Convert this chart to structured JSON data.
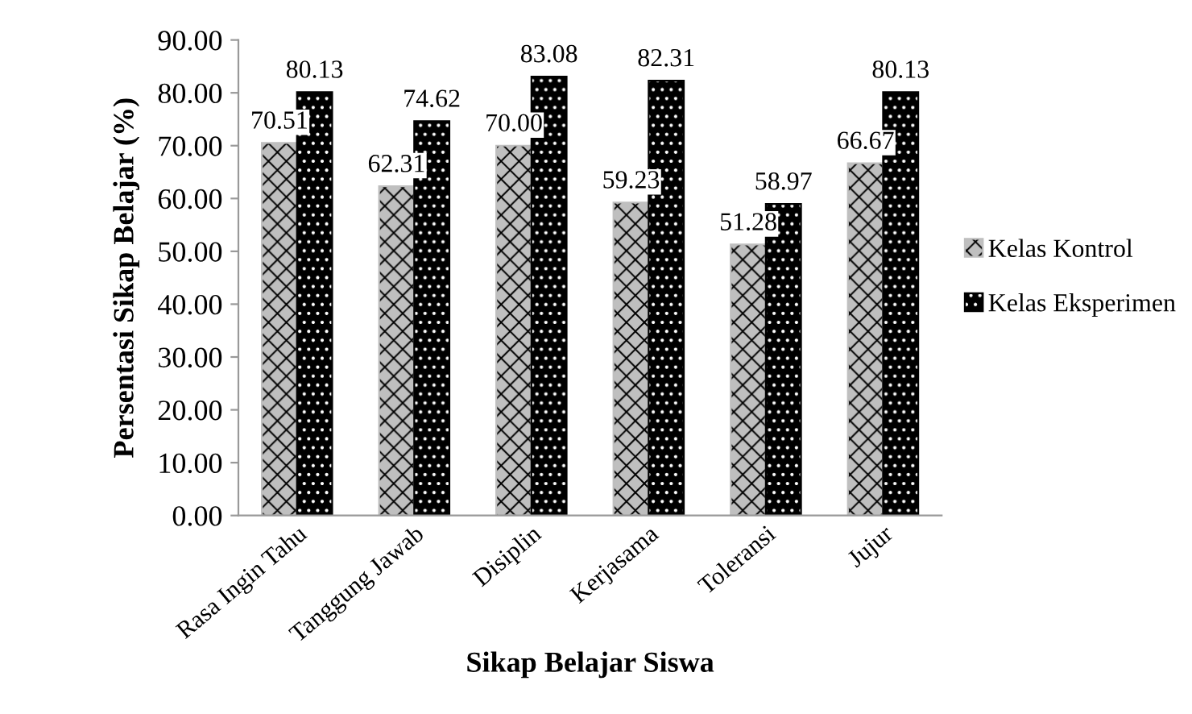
{
  "chart_data": {
    "type": "bar",
    "xlabel": "Sikap Belajar Siswa",
    "ylabel": "Persentasi Sikap Belajar (%)",
    "categories": [
      "Rasa Ingin Tahu",
      "Tanggung Jawab",
      "Disiplin",
      "Kerjasama",
      "Toleransi",
      "Jujur"
    ],
    "series": [
      {
        "name": "Kelas Kontrol",
        "color": "#bfbfbf",
        "values": [
          70.51,
          62.31,
          70.0,
          59.23,
          51.28,
          66.67
        ],
        "value_labels": [
          "70.51",
          "62.31",
          "70.00",
          "59.23",
          "51.28",
          "66.67"
        ]
      },
      {
        "name": "Kelas Eksperimen",
        "color": "#000000",
        "values": [
          80.13,
          74.62,
          83.08,
          82.31,
          58.97,
          80.13
        ],
        "value_labels": [
          "80.13",
          "74.62",
          "83.08",
          "82.31",
          "58.97",
          "80.13"
        ]
      }
    ],
    "ylim": [
      0,
      90
    ],
    "yticks": [
      {
        "value": 0,
        "label": "0.00"
      },
      {
        "value": 10,
        "label": "10.00"
      },
      {
        "value": 20,
        "label": "20.00"
      },
      {
        "value": 30,
        "label": "30.00"
      },
      {
        "value": 40,
        "label": "40.00"
      },
      {
        "value": 50,
        "label": "50.00"
      },
      {
        "value": 60,
        "label": "60.00"
      },
      {
        "value": 70,
        "label": "70.00"
      },
      {
        "value": 80,
        "label": "80.00"
      },
      {
        "value": 90,
        "label": "90.00"
      }
    ],
    "grid": false,
    "legend": "right"
  }
}
